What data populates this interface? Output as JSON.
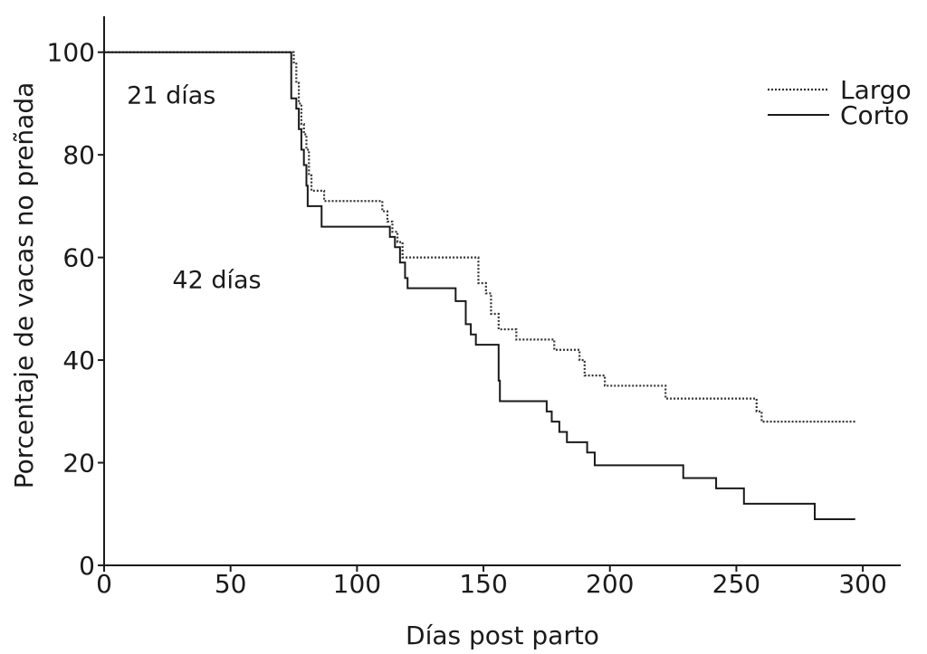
{
  "chart_data": {
    "type": "line",
    "step": true,
    "xlabel": "Días post parto",
    "ylabel": "Porcentaje de vacas no preñada",
    "xlim": [
      0,
      315
    ],
    "ylim": [
      0,
      107
    ],
    "x_ticks": [
      0,
      50,
      100,
      150,
      200,
      250,
      300
    ],
    "y_ticks": [
      0,
      20,
      40,
      60,
      80,
      100
    ],
    "grid": false,
    "legend_position": "top-right",
    "annotations": [
      {
        "text": "21 días",
        "x": 9,
        "y": 90
      },
      {
        "text": "42 días",
        "x": 27,
        "y": 54
      }
    ],
    "series": [
      {
        "name": "Largo",
        "style": "dotted",
        "color": "#333333",
        "points": [
          [
            0,
            100
          ],
          [
            75,
            100
          ],
          [
            75,
            98
          ],
          [
            76,
            94
          ],
          [
            77,
            90
          ],
          [
            78,
            86
          ],
          [
            79,
            84
          ],
          [
            80,
            81
          ],
          [
            81,
            76
          ],
          [
            82,
            73
          ],
          [
            87,
            71
          ],
          [
            110,
            69
          ],
          [
            112,
            67
          ],
          [
            114,
            65
          ],
          [
            116,
            63
          ],
          [
            118,
            60
          ],
          [
            146,
            60
          ],
          [
            148,
            55
          ],
          [
            151,
            53
          ],
          [
            153,
            49
          ],
          [
            156,
            46
          ],
          [
            163,
            44
          ],
          [
            178,
            42
          ],
          [
            188,
            40
          ],
          [
            190,
            37
          ],
          [
            198,
            35
          ],
          [
            218,
            35
          ],
          [
            222,
            32.5
          ],
          [
            256,
            32.5
          ],
          [
            258,
            30
          ],
          [
            260,
            28
          ],
          [
            297,
            28
          ]
        ]
      },
      {
        "name": "Corto",
        "style": "solid",
        "color": "#1a1a1a",
        "points": [
          [
            0,
            100
          ],
          [
            74,
            100
          ],
          [
            74,
            91
          ],
          [
            76,
            89
          ],
          [
            77,
            85
          ],
          [
            78,
            81
          ],
          [
            79,
            78
          ],
          [
            80,
            74
          ],
          [
            80.5,
            70
          ],
          [
            86,
            66
          ],
          [
            113,
            64
          ],
          [
            115,
            62
          ],
          [
            117,
            59
          ],
          [
            119,
            56
          ],
          [
            120,
            54
          ],
          [
            138,
            54
          ],
          [
            139,
            51.5
          ],
          [
            142,
            51.5
          ],
          [
            143,
            47
          ],
          [
            145,
            45
          ],
          [
            147,
            43
          ],
          [
            155,
            43
          ],
          [
            156,
            36
          ],
          [
            156.5,
            32
          ],
          [
            174,
            32
          ],
          [
            175,
            30
          ],
          [
            177,
            28
          ],
          [
            180,
            26
          ],
          [
            183,
            24
          ],
          [
            191,
            22
          ],
          [
            194,
            19.5
          ],
          [
            228,
            19.5
          ],
          [
            229,
            17
          ],
          [
            241,
            17
          ],
          [
            242,
            15
          ],
          [
            252,
            15
          ],
          [
            253,
            12
          ],
          [
            280,
            12
          ],
          [
            281,
            9
          ],
          [
            297,
            9
          ]
        ]
      }
    ]
  }
}
